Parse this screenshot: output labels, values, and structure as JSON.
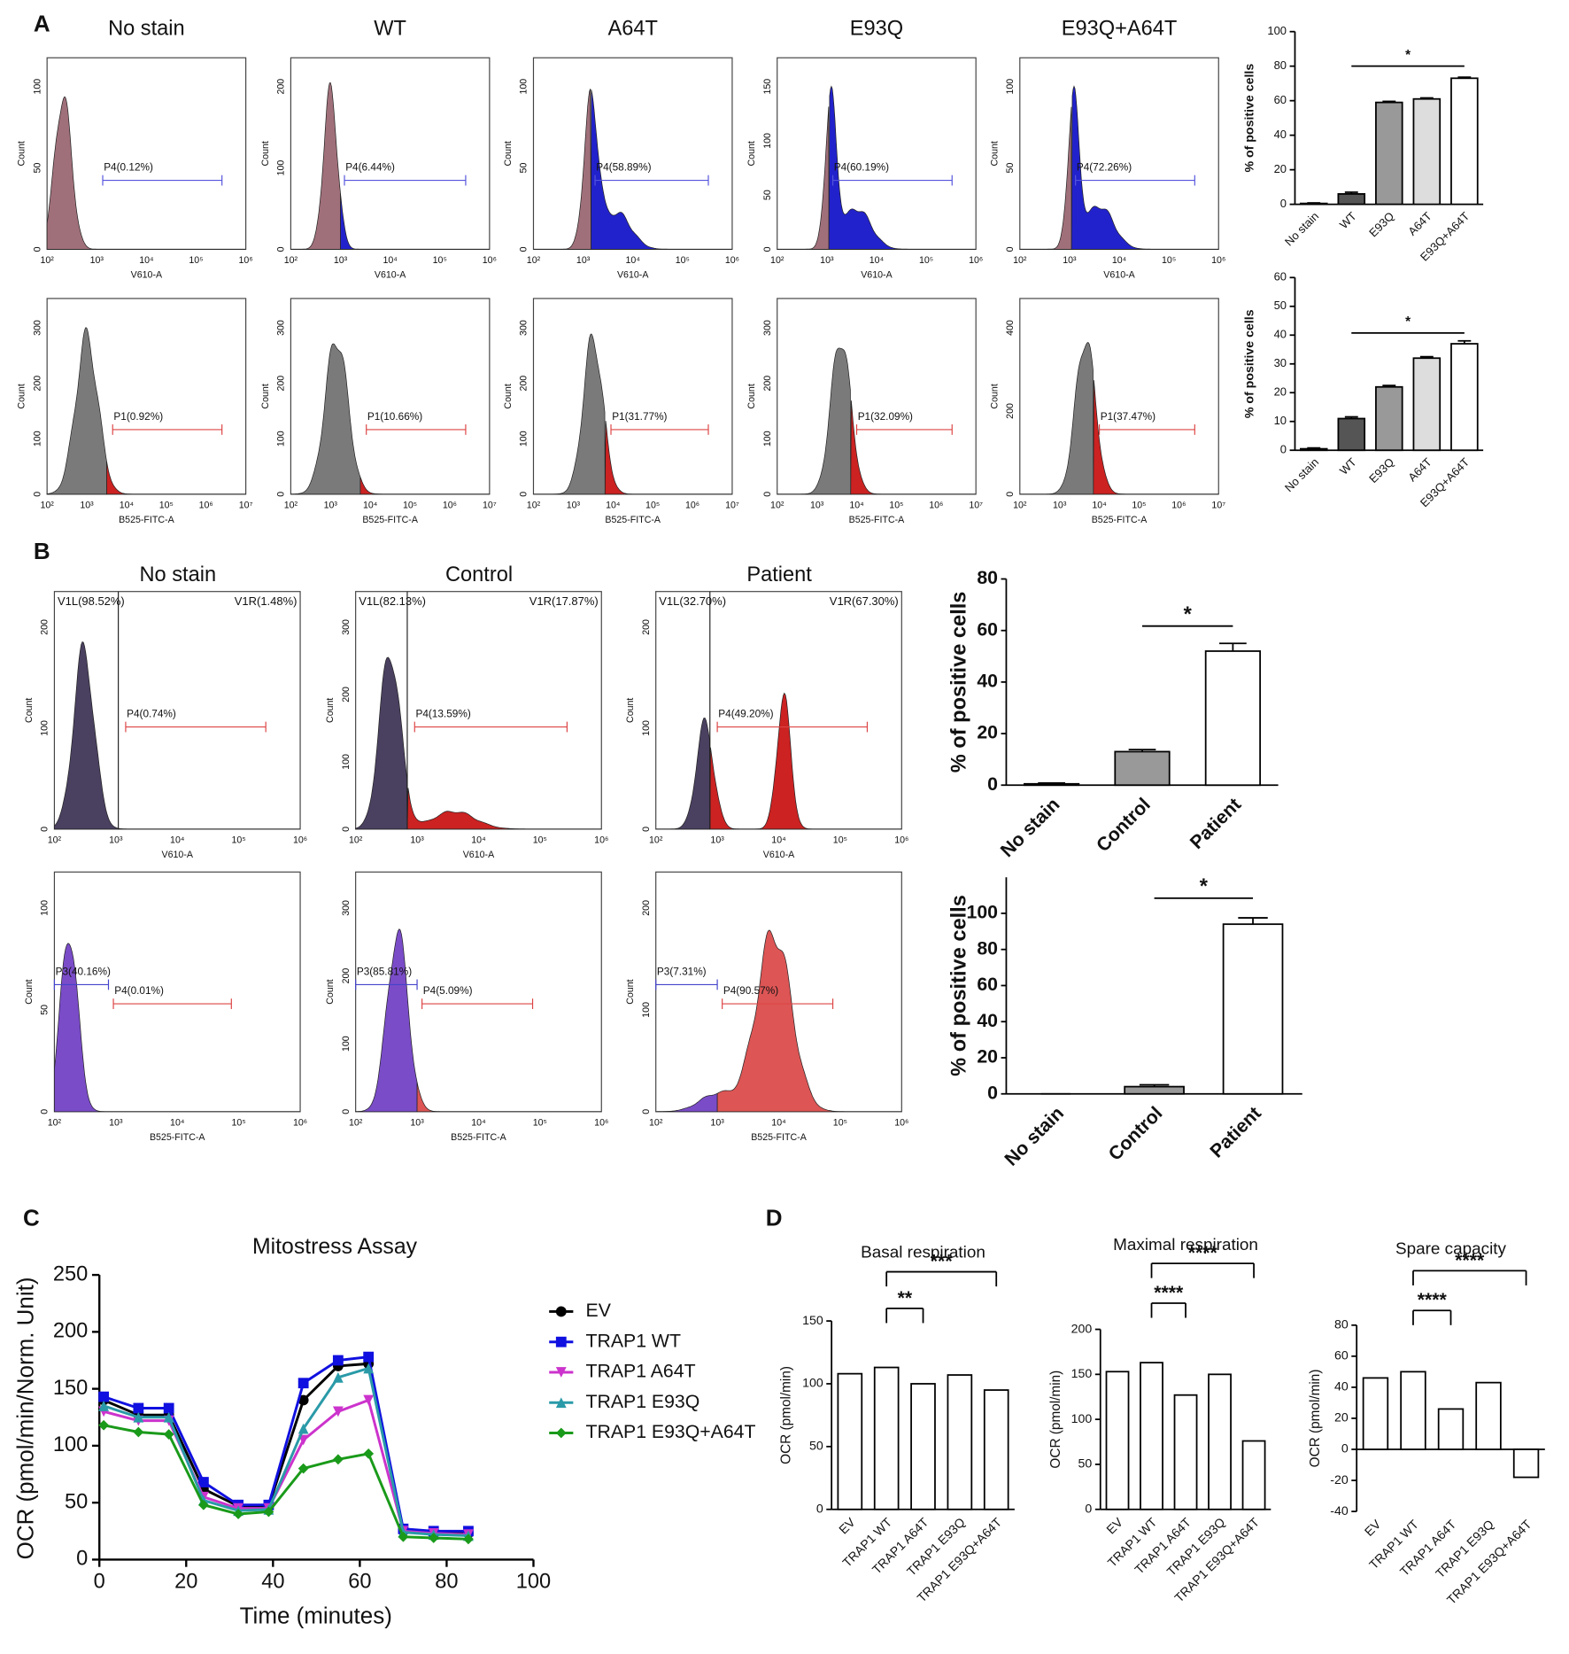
{
  "panel_labels": [
    "A",
    "B",
    "C",
    "D"
  ],
  "flow_a": {
    "titles": [
      "No stain",
      "WT",
      "A64T",
      "E93Q",
      "E93Q+A64T"
    ],
    "rows": [
      {
        "xlabel": "V610-A",
        "ylabel": "Count",
        "xticks": [
          "10²",
          "10³",
          "10⁴",
          "10⁵",
          "10⁶"
        ],
        "gates": [
          [
            "P4(0.12%)"
          ],
          [
            "P4(6.44%)"
          ],
          [
            "P4(58.89%)"
          ],
          [
            "P4(60.19%)"
          ],
          [
            "P4(72.26%)"
          ]
        ],
        "yticks": [
          [
            0,
            50,
            100
          ],
          [
            0,
            100,
            200
          ],
          [
            0,
            50,
            100
          ],
          [
            0,
            50,
            100,
            150
          ],
          [
            0,
            50,
            100
          ]
        ]
      },
      {
        "xlabel": "B525-FITC-A",
        "ylabel": "Count",
        "xticks": [
          "10²",
          "10³",
          "10⁴",
          "10⁵",
          "10⁶",
          "10⁷"
        ],
        "gates": [
          [
            "P1(0.92%)"
          ],
          [
            "P1(10.66%)"
          ],
          [
            "P1(31.77%)"
          ],
          [
            "P1(32.09%)"
          ],
          [
            "P1(37.47%)"
          ]
        ],
        "yticks": [
          [
            0,
            100,
            200,
            300
          ],
          [
            0,
            100,
            200,
            300
          ],
          [
            0,
            100,
            200,
            300
          ],
          [
            0,
            100,
            200,
            300
          ],
          [
            0,
            200,
            400
          ]
        ]
      }
    ]
  },
  "flow_b": {
    "titles": [
      "No stain",
      "Control",
      "Patient"
    ],
    "rows": [
      {
        "xlabel": "V610-A",
        "ylabel": "Count",
        "xticks": [
          "10²",
          "10³",
          "10⁴",
          "10⁵",
          "10⁶"
        ],
        "regions": [
          [
            "V1L(98.52%)",
            "V1R(1.48%)"
          ],
          [
            "V1L(82.13%)",
            "V1R(17.87%)"
          ],
          [
            "V1L(32.70%)",
            "V1R(67.30%)"
          ]
        ],
        "gates": [
          [
            "P4(0.74%)"
          ],
          [
            "P4(13.59%)"
          ],
          [
            "P4(49.20%)"
          ]
        ],
        "yticks": [
          [
            0,
            100,
            200
          ],
          [
            0,
            100,
            200,
            300
          ],
          [
            0,
            100,
            200
          ]
        ]
      },
      {
        "xlabel": "B525-FITC-A",
        "ylabel": "Count",
        "xticks": [
          "10²",
          "10³",
          "10⁴",
          "10⁵",
          "10⁶"
        ],
        "gates": [
          [
            "P3(40.16%)",
            "P4(0.01%)"
          ],
          [
            "P3(85.81%)",
            "P4(5.09%)"
          ],
          [
            "P3(7.31%)",
            "P4(90.57%)"
          ]
        ],
        "yticks": [
          [
            0,
            50,
            100
          ],
          [
            0,
            100,
            200,
            300
          ],
          [
            0,
            100,
            200
          ]
        ]
      }
    ]
  },
  "chart_data": [
    {
      "type": "bar",
      "ylabel": "% of positive cells",
      "categories": [
        "No stain",
        "WT",
        "E93Q",
        "A64T",
        "E93Q+A64T"
      ],
      "values": [
        0.5,
        6,
        59,
        61,
        73
      ],
      "errors": [
        0.3,
        1,
        0.6,
        0.6,
        0.6
      ],
      "colors": [
        "#ffffff",
        "#555555",
        "#999999",
        "#dddddd",
        "#ffffff"
      ],
      "ylim": [
        0,
        100
      ],
      "yticks": [
        0,
        20,
        40,
        60,
        80,
        100
      ],
      "annotations": [
        "*"
      ]
    },
    {
      "type": "bar",
      "ylabel": "% of positive cells",
      "categories": [
        "No stain",
        "WT",
        "E93Q",
        "A64T",
        "E93Q+A64T"
      ],
      "values": [
        0.5,
        11,
        22,
        32,
        37
      ],
      "errors": [
        0.3,
        0.6,
        0.5,
        0.5,
        1
      ],
      "colors": [
        "#ffffff",
        "#555555",
        "#999999",
        "#dddddd",
        "#ffffff"
      ],
      "ylim": [
        0,
        60
      ],
      "yticks": [
        0,
        10,
        20,
        30,
        40,
        50,
        60
      ],
      "annotations": [
        "*"
      ]
    },
    {
      "type": "bar",
      "ylabel": "% of positive cells",
      "categories": [
        "No stain",
        "Control",
        "Patient"
      ],
      "values": [
        0.5,
        13,
        52
      ],
      "errors": [
        0.3,
        0.8,
        3
      ],
      "colors": [
        "#ffffff",
        "#999999",
        "#ffffff"
      ],
      "ylim": [
        0,
        80
      ],
      "yticks": [
        0,
        20,
        40,
        60,
        80
      ],
      "annotations": [
        "*"
      ]
    },
    {
      "type": "bar",
      "ylabel": "% of positive cells",
      "categories": [
        "No stain",
        "Control",
        "Patient"
      ],
      "values": [
        0,
        4,
        94
      ],
      "errors": [
        0,
        1,
        3.5
      ],
      "colors": [
        "#ffffff",
        "#999999",
        "#ffffff"
      ],
      "ylim": [
        0,
        120
      ],
      "yticks": [
        0,
        20,
        40,
        60,
        80,
        100
      ],
      "annotations": [
        "*"
      ]
    },
    {
      "type": "line",
      "title": "Mitostress Assay",
      "xlabel": "Time (minutes)",
      "ylabel": "OCR (pmol/min/Norm. Unit)",
      "x": [
        1,
        9,
        16,
        24,
        32,
        39,
        47,
        55,
        62,
        70,
        77,
        85
      ],
      "xlim": [
        0,
        100
      ],
      "xticks": [
        0,
        20,
        40,
        60,
        80,
        100
      ],
      "ylim": [
        0,
        250
      ],
      "yticks": [
        0,
        50,
        100,
        150,
        200,
        250
      ],
      "series": [
        {
          "name": "EV",
          "color": "#000000",
          "values": [
            140,
            127,
            127,
            62,
            47,
            47,
            140,
            170,
            172,
            25,
            23,
            23
          ]
        },
        {
          "name": "TRAP1 WT",
          "color": "#1010e0",
          "values": [
            143,
            133,
            133,
            68,
            48,
            48,
            155,
            175,
            178,
            27,
            25,
            25
          ]
        },
        {
          "name": "TRAP1 A64T",
          "color": "#cc33cc",
          "values": [
            130,
            122,
            122,
            55,
            45,
            45,
            105,
            130,
            140,
            25,
            23,
            22
          ]
        },
        {
          "name": "TRAP1 E93Q",
          "color": "#2a9aa8",
          "values": [
            135,
            125,
            125,
            52,
            43,
            44,
            115,
            160,
            168,
            24,
            22,
            21
          ]
        },
        {
          "name": "TRAP1 E93Q+A64T",
          "color": "#1a9a1a",
          "values": [
            118,
            112,
            110,
            48,
            40,
            42,
            80,
            88,
            93,
            20,
            19,
            18
          ]
        }
      ]
    },
    {
      "type": "bar",
      "title": "Basal respiration",
      "ylabel": "OCR (pmol/min)",
      "categories": [
        "EV",
        "TRAP1 WT",
        "TRAP1 A64T",
        "TRAP1 E93Q",
        "TRAP1 E93Q+A64T"
      ],
      "values": [
        108,
        113,
        100,
        107,
        95
      ],
      "colors": [
        "#ffffff",
        "#ffffff",
        "#ffffff",
        "#ffffff",
        "#ffffff"
      ],
      "ylim": [
        0,
        150
      ],
      "yticks": [
        0,
        50,
        100,
        150
      ],
      "annotations": [
        "**",
        "***"
      ]
    },
    {
      "type": "bar",
      "title": "Maximal respiration",
      "ylabel": "OCR (pmol/min)",
      "categories": [
        "EV",
        "TRAP1 WT",
        "TRAP1 A64T",
        "TRAP1 E93Q",
        "TRAP1 E93Q+A64T"
      ],
      "values": [
        153,
        163,
        127,
        150,
        76
      ],
      "colors": [
        "#ffffff",
        "#ffffff",
        "#ffffff",
        "#ffffff",
        "#ffffff"
      ],
      "ylim": [
        0,
        200
      ],
      "yticks": [
        0,
        50,
        100,
        150,
        200
      ],
      "annotations": [
        "****",
        "****"
      ]
    },
    {
      "type": "bar",
      "title": "Spare capacity",
      "ylabel": "OCR (pmol/min)",
      "categories": [
        "EV",
        "TRAP1 WT",
        "TRAP1 A64T",
        "TRAP1 E93Q",
        "TRAP1 E93Q+A64T"
      ],
      "values": [
        46,
        50,
        26,
        43,
        -18
      ],
      "colors": [
        "#ffffff",
        "#ffffff",
        "#ffffff",
        "#ffffff",
        "#ffffff"
      ],
      "ylim": [
        -40,
        80
      ],
      "yticks": [
        -40,
        -20,
        0,
        20,
        40,
        60,
        80
      ],
      "annotations": [
        "****",
        "****"
      ]
    }
  ]
}
